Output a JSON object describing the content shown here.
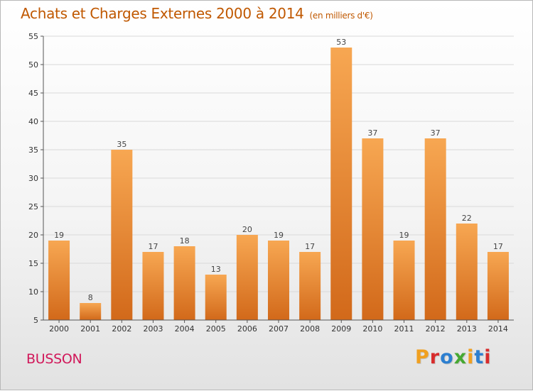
{
  "header": {
    "title": "Achats et Charges Externes 2000 à 2014",
    "unit": "(en milliers d'€)"
  },
  "footer": {
    "place_name": "BUSSON",
    "logo_text": "Proxiti",
    "logo_colors": [
      "#f0a020",
      "#d82c2c",
      "#2c7fd0",
      "#46a832",
      "#f0a020",
      "#2c7fd0",
      "#d82c2c"
    ]
  },
  "colors": {
    "bar_top": "#f7a752",
    "bar_bottom": "#d2691a",
    "grid": "#d9d9d9",
    "axis": "#555555",
    "value_text": "#444444"
  },
  "chart_data": {
    "type": "bar",
    "categories": [
      "2000",
      "2001",
      "2002",
      "2003",
      "2004",
      "2005",
      "2006",
      "2007",
      "2008",
      "2009",
      "2010",
      "2011",
      "2012",
      "2013",
      "2014"
    ],
    "values": [
      19,
      8,
      35,
      17,
      18,
      13,
      20,
      19,
      17,
      53,
      37,
      19,
      37,
      22,
      17
    ],
    "ylim": [
      5,
      55
    ],
    "yticks": [
      5,
      10,
      15,
      20,
      25,
      30,
      35,
      40,
      45,
      50,
      55
    ],
    "grid": true
  }
}
